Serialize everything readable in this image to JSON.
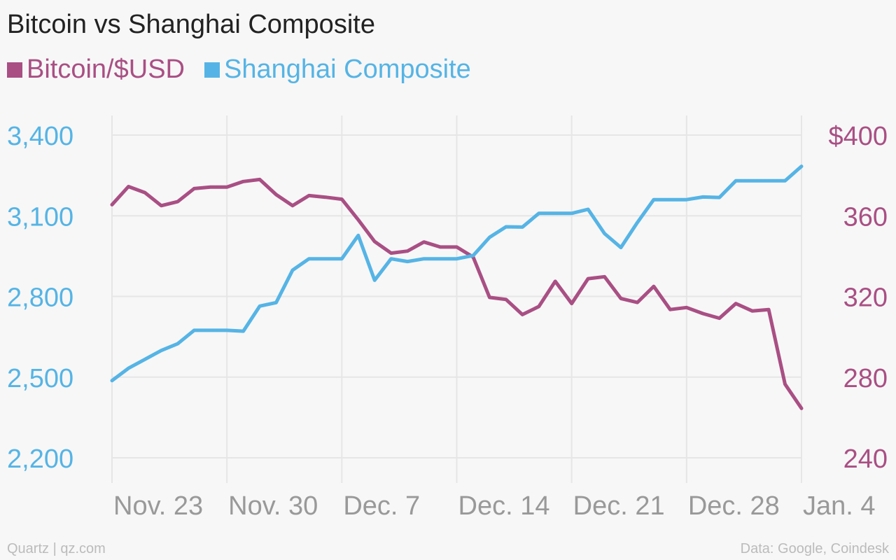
{
  "chart_data": {
    "type": "line",
    "title": "Bitcoin vs Shanghai Composite",
    "legend_placement": "top-left",
    "grid": true,
    "x_ticks": [
      {
        "label": "Nov. 23",
        "day": 0
      },
      {
        "label": "Nov. 30",
        "day": 7
      },
      {
        "label": "Dec. 7",
        "day": 14
      },
      {
        "label": "Dec. 14",
        "day": 21
      },
      {
        "label": "Dec. 21",
        "day": 28
      },
      {
        "label": "Dec. 28",
        "day": 35
      },
      {
        "label": "Jan. 4",
        "day": 42
      }
    ],
    "x_range": [
      0,
      42
    ],
    "y_left": {
      "ticks": [
        "3,400",
        "3,100",
        "2,800",
        "2,500",
        "2,200"
      ],
      "tick_values": [
        3400,
        3100,
        2800,
        2500,
        2200
      ],
      "range": [
        2200,
        3400
      ],
      "color": "#55b4e5"
    },
    "y_right": {
      "ticks": [
        "$400",
        "360",
        "320",
        "280",
        "240"
      ],
      "tick_values": [
        400,
        360,
        320,
        280,
        240
      ],
      "range": [
        240,
        400
      ],
      "color": "#a94f84"
    },
    "series": [
      {
        "name": "Bitcoin/$USD",
        "axis": "right",
        "color": "#a94f84",
        "points": [
          [
            0,
            365.5
          ],
          [
            1,
            374.5
          ],
          [
            2,
            371.5
          ],
          [
            3,
            365
          ],
          [
            4,
            367
          ],
          [
            5,
            373.5
          ],
          [
            6,
            374.2
          ],
          [
            7,
            374.2
          ],
          [
            8,
            377
          ],
          [
            9,
            378
          ],
          [
            10,
            370.5
          ],
          [
            11,
            365
          ],
          [
            12,
            370
          ],
          [
            13,
            369.2
          ],
          [
            14,
            368.2
          ],
          [
            15,
            358
          ],
          [
            16,
            347.2
          ],
          [
            17,
            341.5
          ],
          [
            18,
            342.5
          ],
          [
            19,
            347
          ],
          [
            20,
            344.5
          ],
          [
            21,
            344.5
          ],
          [
            22,
            339.5
          ],
          [
            23,
            319.5
          ],
          [
            24,
            318.5
          ],
          [
            25,
            311
          ],
          [
            26,
            315
          ],
          [
            27,
            327.5
          ],
          [
            28,
            316.5
          ],
          [
            29,
            328.8
          ],
          [
            30,
            329.8
          ],
          [
            31,
            319
          ],
          [
            32,
            317
          ],
          [
            33,
            325
          ],
          [
            34,
            313.5
          ],
          [
            35,
            314.5
          ],
          [
            36,
            311.5
          ],
          [
            37,
            309.2
          ],
          [
            38,
            316.5
          ],
          [
            39,
            312.8
          ],
          [
            40,
            313.5
          ],
          [
            41,
            276.5
          ],
          [
            42,
            264.5
          ]
        ]
      },
      {
        "name": "Shanghai Composite",
        "axis": "left",
        "color": "#55b4e5",
        "points": [
          [
            0,
            2487
          ],
          [
            1,
            2533
          ],
          [
            2,
            2566
          ],
          [
            3,
            2599
          ],
          [
            4,
            2624
          ],
          [
            5,
            2674
          ],
          [
            6,
            2674
          ],
          [
            7,
            2674
          ],
          [
            8,
            2671
          ],
          [
            9,
            2764
          ],
          [
            10,
            2777
          ],
          [
            11,
            2898
          ],
          [
            12,
            2940
          ],
          [
            13,
            2940
          ],
          [
            14,
            2940
          ],
          [
            15,
            3027
          ],
          [
            16,
            2860
          ],
          [
            17,
            2940
          ],
          [
            18,
            2930
          ],
          [
            19,
            2940
          ],
          [
            20,
            2940
          ],
          [
            21,
            2940
          ],
          [
            22,
            2952
          ],
          [
            23,
            3020
          ],
          [
            24,
            3059
          ],
          [
            25,
            3058
          ],
          [
            26,
            3109
          ],
          [
            27,
            3109
          ],
          [
            28,
            3109
          ],
          [
            29,
            3124
          ],
          [
            30,
            3034
          ],
          [
            31,
            2982
          ],
          [
            32,
            3075
          ],
          [
            33,
            3160
          ],
          [
            34,
            3160
          ],
          [
            35,
            3160
          ],
          [
            36,
            3170
          ],
          [
            37,
            3168
          ],
          [
            38,
            3230
          ],
          [
            39,
            3230
          ],
          [
            40,
            3230
          ],
          [
            41,
            3230
          ],
          [
            42,
            3284
          ]
        ]
      }
    ]
  },
  "footer": {
    "source_left": "Quartz | qz.com",
    "source_right": "Data: Google, Coindesk"
  }
}
